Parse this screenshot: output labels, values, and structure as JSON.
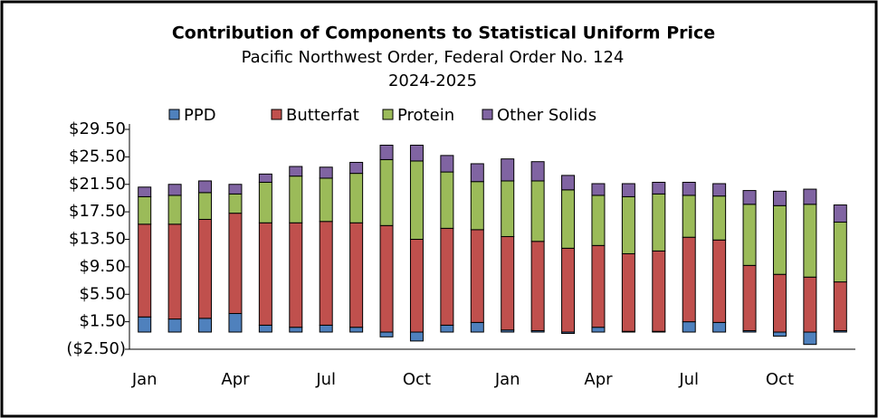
{
  "chart_data": {
    "type": "stacked_bar",
    "title": "Contribution of Components to Statistical Uniform Price",
    "subtitle": "Pacific Northwest Order, Federal Order No. 124",
    "period": "2024-2025",
    "categories": [
      "Jan",
      null,
      null,
      "Apr",
      null,
      null,
      "Jul",
      null,
      null,
      "Oct",
      null,
      null,
      "Jan",
      null,
      null,
      "Apr",
      null,
      null,
      "Jul",
      null,
      null,
      "Oct",
      null,
      null
    ],
    "series": [
      {
        "name": "PPD",
        "color": "#4f81bd",
        "values": [
          2.2,
          1.9,
          2.0,
          2.7,
          1.0,
          0.7,
          1.0,
          0.7,
          -0.7,
          -1.3,
          1.0,
          1.4,
          0.3,
          0.2,
          -0.2,
          0.7,
          0.1,
          0.1,
          1.5,
          1.4,
          0.2,
          -0.6,
          -1.8,
          0.2
        ]
      },
      {
        "name": "Butterfat",
        "color": "#c0504d",
        "values": [
          13.5,
          13.8,
          14.4,
          14.6,
          14.9,
          15.2,
          15.1,
          15.2,
          15.5,
          13.5,
          14.1,
          13.5,
          13.6,
          13.0,
          12.2,
          11.9,
          11.3,
          11.7,
          12.3,
          12.0,
          9.5,
          8.4,
          8.0,
          7.1
        ]
      },
      {
        "name": "Protein",
        "color": "#9bbb59",
        "values": [
          4.0,
          4.2,
          3.9,
          2.8,
          5.9,
          6.8,
          6.3,
          7.2,
          9.6,
          11.4,
          8.2,
          7.0,
          8.1,
          8.8,
          8.5,
          7.3,
          8.3,
          8.3,
          6.1,
          6.4,
          8.9,
          10.0,
          10.6,
          8.7
        ]
      },
      {
        "name": "Other Solids",
        "color": "#8064a2",
        "values": [
          1.4,
          1.6,
          1.7,
          1.4,
          1.2,
          1.4,
          1.6,
          1.6,
          2.1,
          2.3,
          2.4,
          2.6,
          3.2,
          2.8,
          2.1,
          1.7,
          1.9,
          1.7,
          1.9,
          1.8,
          2.0,
          2.1,
          2.2,
          2.5
        ]
      }
    ],
    "ylim": [
      -2.5,
      29.5
    ],
    "yticks": [
      {
        "value": -2.5,
        "label": "($2.50)"
      },
      {
        "value": 1.5,
        "label": "$1.50"
      },
      {
        "value": 5.5,
        "label": "$5.50"
      },
      {
        "value": 9.5,
        "label": "$9.50"
      },
      {
        "value": 13.5,
        "label": "$13.50"
      },
      {
        "value": 17.5,
        "label": "$17.50"
      },
      {
        "value": 21.5,
        "label": "$21.50"
      },
      {
        "value": 25.5,
        "label": "$25.50"
      },
      {
        "value": 29.5,
        "label": "$29.50"
      }
    ],
    "legend": "top"
  }
}
